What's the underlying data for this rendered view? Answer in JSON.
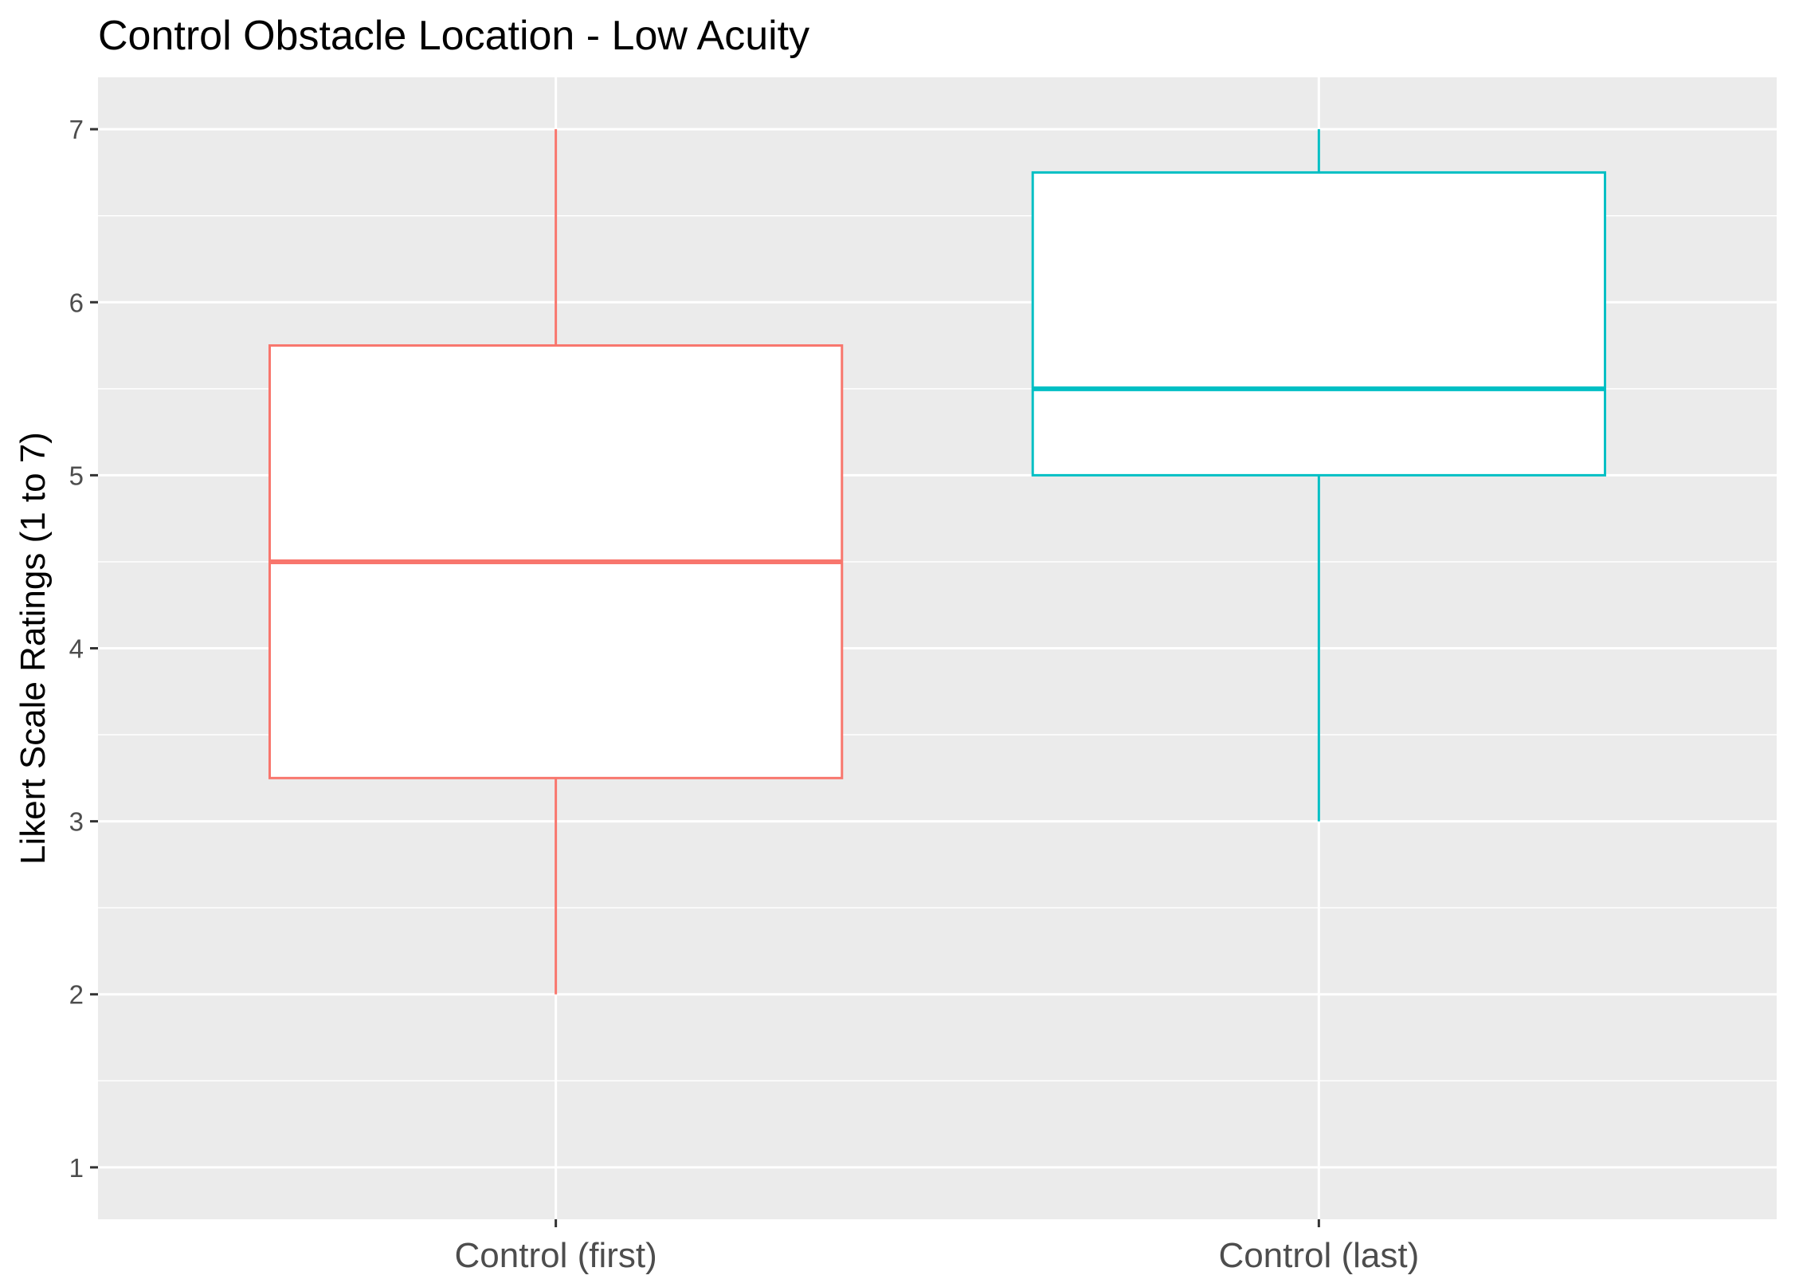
{
  "chart_data": {
    "type": "boxplot",
    "title": "Control Obstacle Location - Low Acuity",
    "xlabel": "",
    "ylabel": "Likert Scale Ratings (1 to 7)",
    "ylim": [
      0.7,
      7.3
    ],
    "yticks": [
      1,
      2,
      3,
      4,
      5,
      6,
      7
    ],
    "grid": true,
    "legend": "none",
    "categories": [
      "Control (first)",
      "Control (last)"
    ],
    "boxes": [
      {
        "category": "Control (first)",
        "min": 2,
        "q1": 3.25,
        "median": 4.5,
        "q3": 5.75,
        "max": 7,
        "color": "#F8766D"
      },
      {
        "category": "Control (last)",
        "min": 3,
        "q1": 5,
        "median": 5.5,
        "q3": 6.75,
        "max": 7,
        "color": "#00BFC4"
      }
    ],
    "panel_background": "#EBEBEB",
    "grid_color": "#FFFFFF"
  }
}
